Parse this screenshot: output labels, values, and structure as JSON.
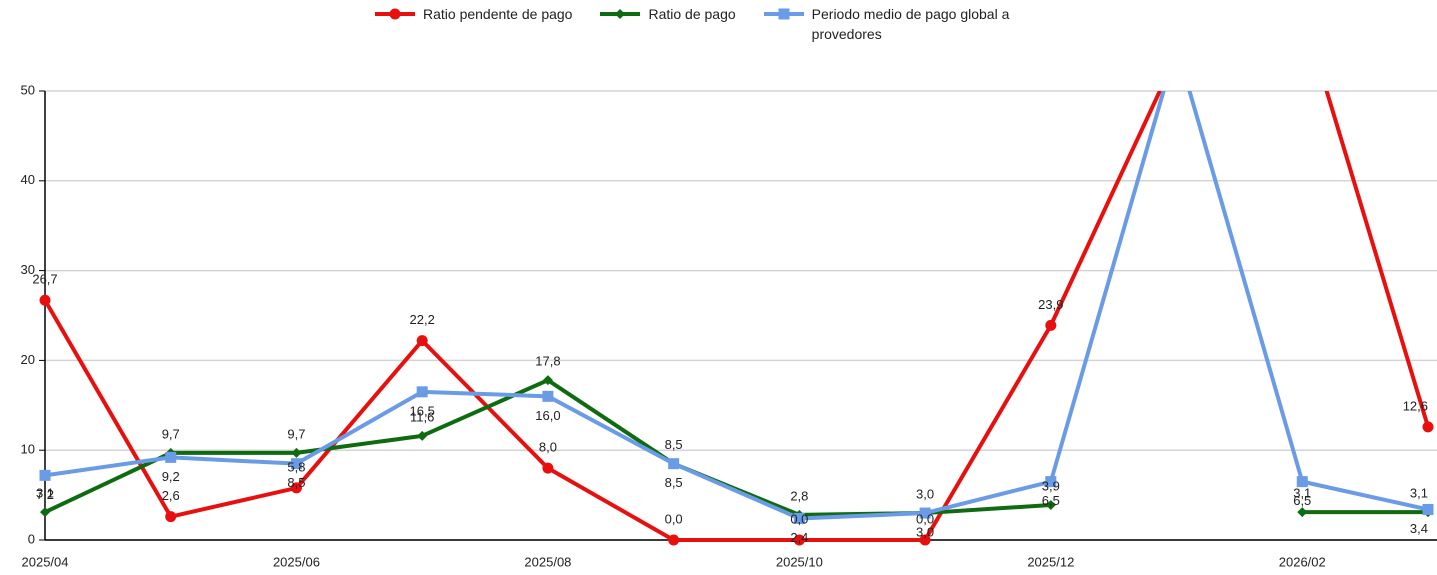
{
  "chart_data": {
    "type": "line",
    "categories": [
      "2025/04",
      null,
      "2025/06",
      null,
      "2025/08",
      null,
      "2025/10",
      null,
      "2025/12",
      null,
      "2026/02",
      null
    ],
    "series": [
      {
        "name": "Ratio pendente de pago",
        "color": "#e8100f",
        "marker": "circle",
        "values": [
          26.7,
          2.6,
          5.8,
          22.2,
          8.0,
          0.0,
          0.0,
          0.0,
          23.9,
          54,
          59,
          12.6
        ],
        "value_labels": [
          "26,7",
          "2,6",
          "5,8",
          "22,2",
          "8,0",
          "0,0",
          "0,0",
          "0,0",
          "23,9",
          null,
          null,
          "12,6"
        ]
      },
      {
        "name": "Ratio de pago",
        "color": "#0f6b0f",
        "marker": "diamond",
        "values": [
          3.1,
          9.7,
          9.7,
          11.6,
          17.8,
          8.5,
          2.8,
          3.0,
          3.9,
          null,
          3.1,
          3.1
        ],
        "value_labels": [
          "3,1",
          "9,7",
          "9,7",
          "11,6",
          "17,8",
          "8,5",
          "2,8",
          "3,0",
          "3,9",
          null,
          "3,1",
          "3,1"
        ]
      },
      {
        "name": "Periodo medio de pago global a provedores",
        "color": "#6a9be6",
        "marker": "square",
        "values": [
          7.2,
          9.2,
          8.5,
          16.5,
          16.0,
          8.5,
          2.4,
          3.0,
          6.5,
          55,
          6.5,
          3.4
        ],
        "value_labels": [
          "7,2",
          "9,2",
          "8,5",
          "16,5",
          "16,0",
          "8,5",
          "2,4",
          "3,0",
          "6,5",
          null,
          "6,5",
          "3,4"
        ]
      }
    ],
    "ylim": [
      0,
      50
    ],
    "yticks": [
      0,
      10,
      20,
      30,
      40,
      50
    ],
    "grid": true
  }
}
